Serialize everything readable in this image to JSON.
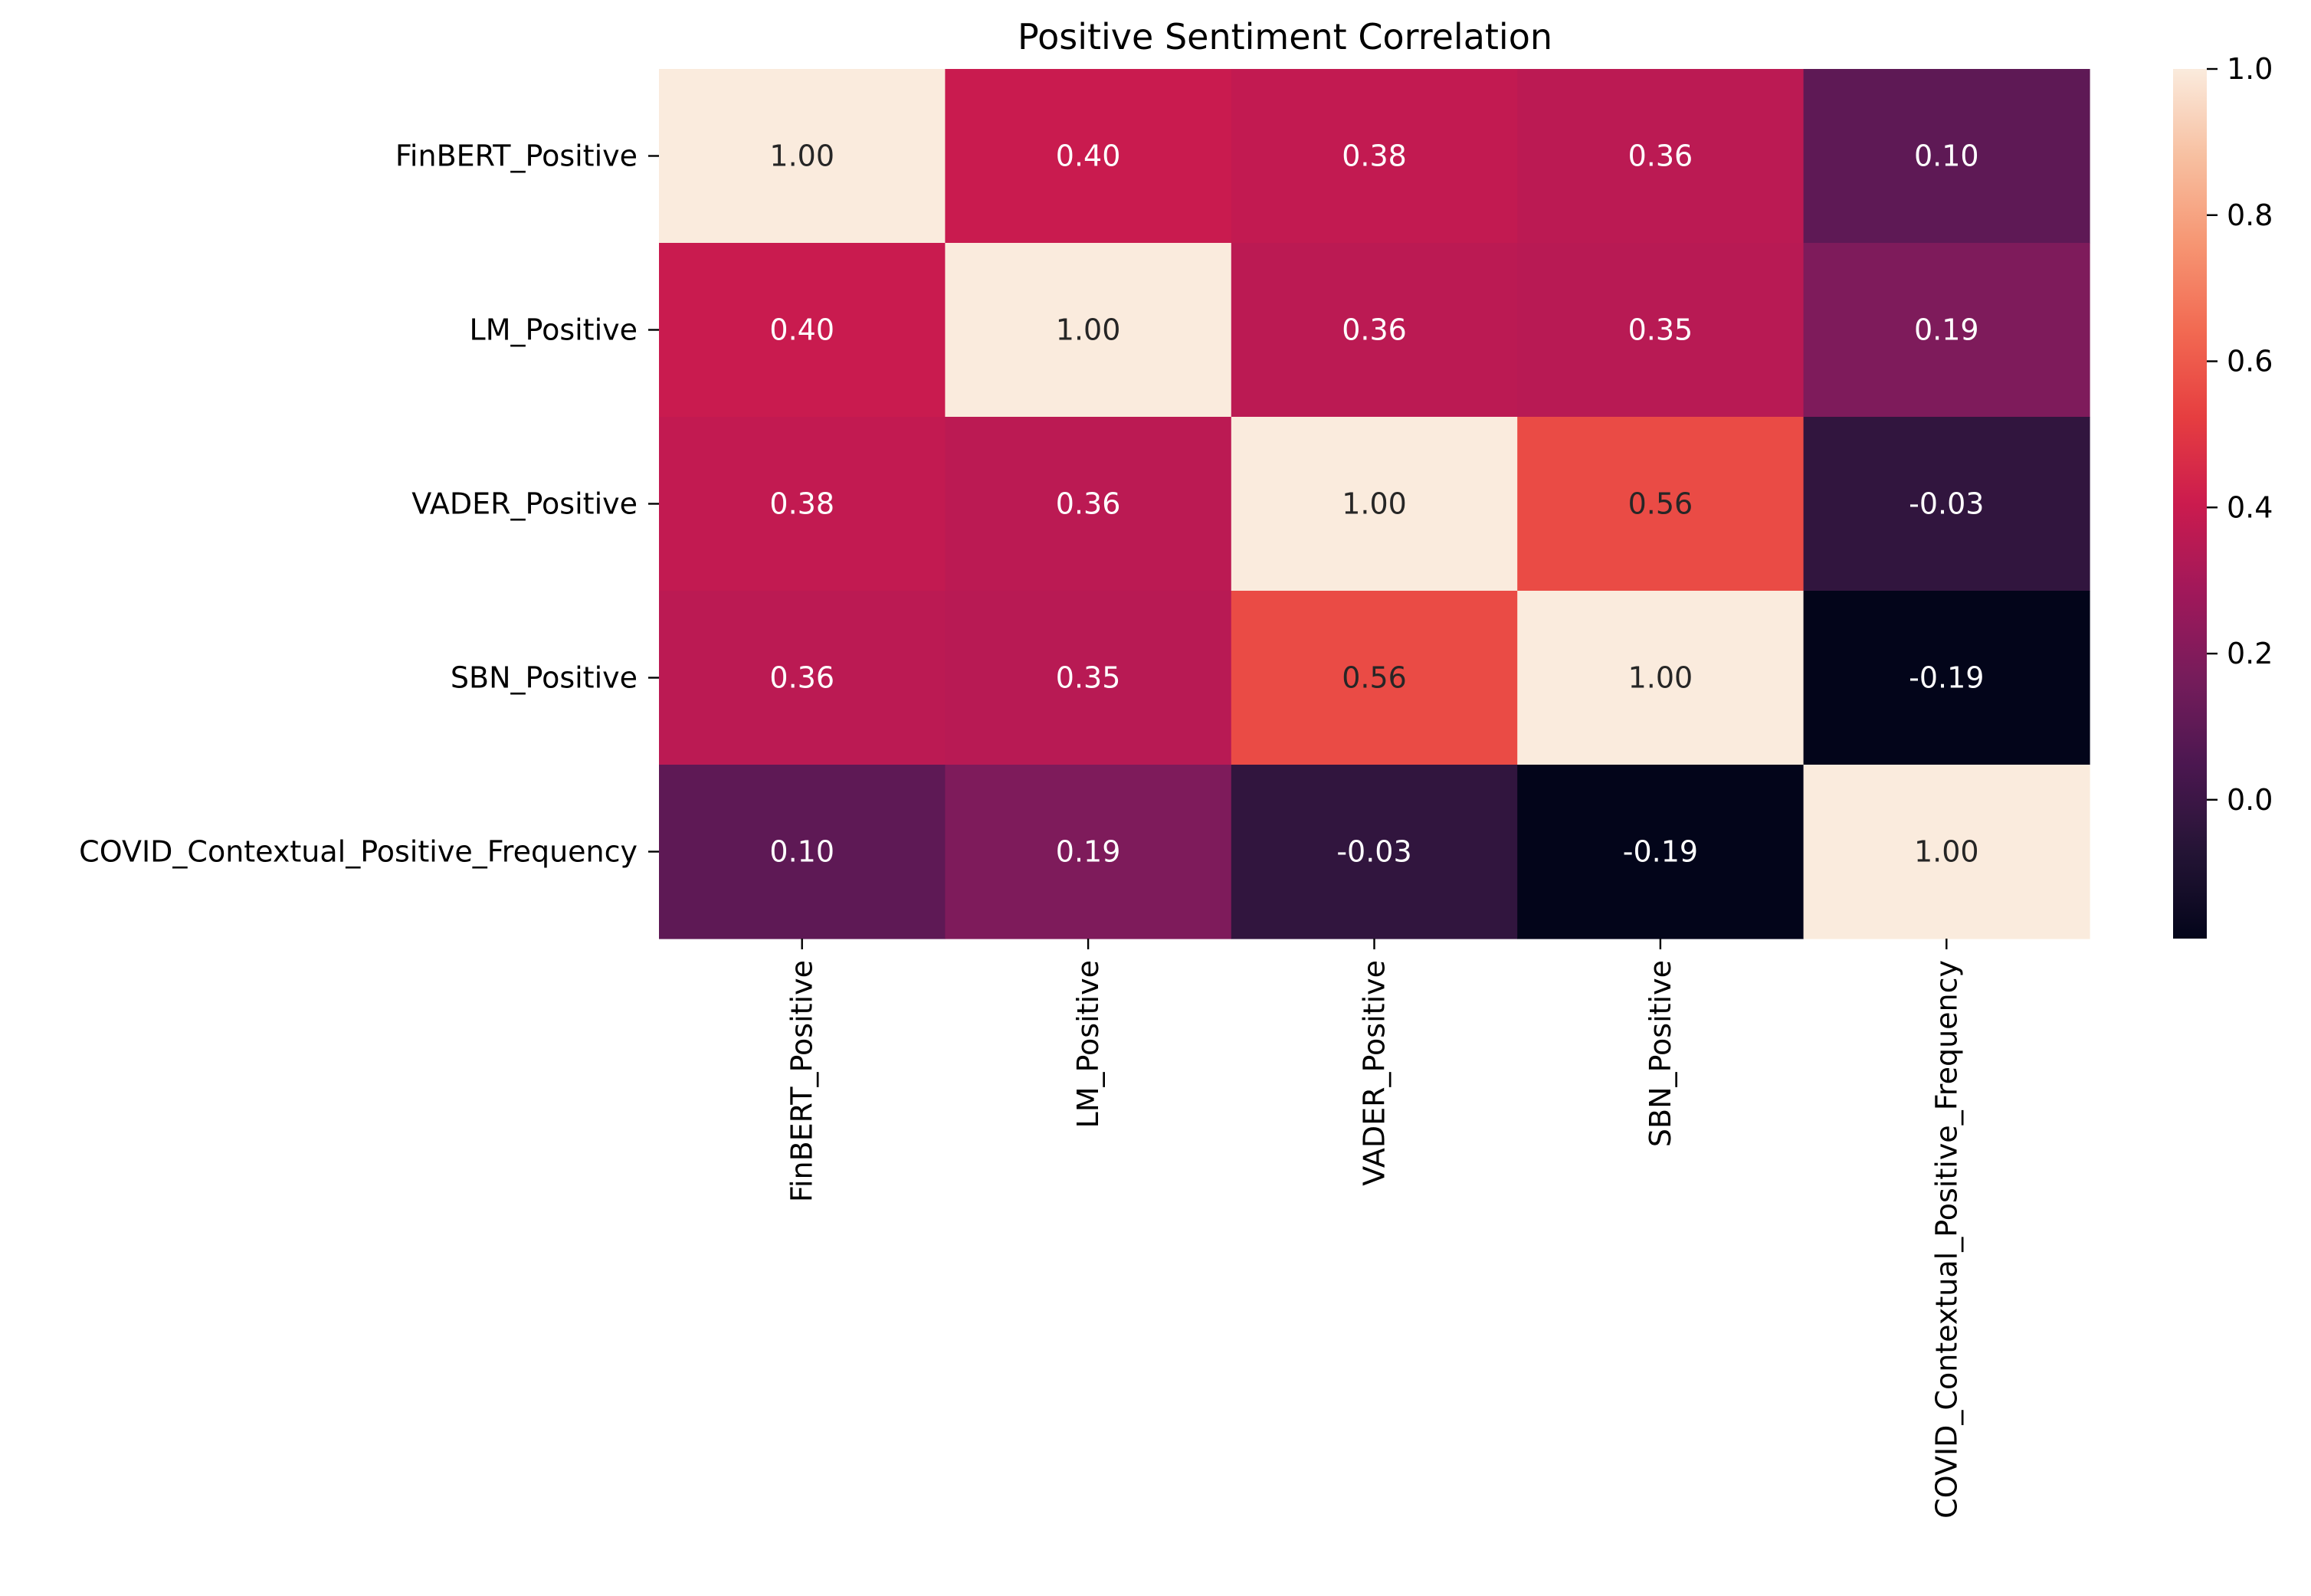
{
  "chart_data": {
    "type": "heatmap",
    "title": "Positive Sentiment Correlation",
    "xlabel": "",
    "ylabel": "",
    "x_categories": [
      "FinBERT_Positive",
      "LM_Positive",
      "VADER_Positive",
      "SBN_Positive",
      "COVID_Contextual_Positive_Frequency"
    ],
    "y_categories": [
      "FinBERT_Positive",
      "LM_Positive",
      "VADER_Positive",
      "SBN_Positive",
      "COVID_Contextual_Positive_Frequency"
    ],
    "values": [
      [
        1.0,
        0.4,
        0.38,
        0.36,
        0.1
      ],
      [
        0.4,
        1.0,
        0.36,
        0.35,
        0.19
      ],
      [
        0.38,
        0.36,
        1.0,
        0.56,
        -0.03
      ],
      [
        0.36,
        0.35,
        0.56,
        1.0,
        -0.19
      ],
      [
        0.1,
        0.19,
        -0.03,
        -0.19,
        1.0
      ]
    ],
    "cell_labels": [
      [
        "1.00",
        "0.40",
        "0.38",
        "0.36",
        "0.10"
      ],
      [
        "0.40",
        "1.00",
        "0.36",
        "0.35",
        "0.19"
      ],
      [
        "0.38",
        "0.36",
        "1.00",
        "0.56",
        "-0.03"
      ],
      [
        "0.36",
        "0.35",
        "0.56",
        "1.00",
        "-0.19"
      ],
      [
        "0.10",
        "0.19",
        "-0.03",
        "-0.19",
        "1.00"
      ]
    ],
    "colormap": "rocket",
    "color_range": [
      -0.19,
      1.0
    ],
    "colorbar": {
      "ticks": [
        0.0,
        0.2,
        0.4,
        0.6,
        0.8,
        1.0
      ],
      "tick_labels": [
        "0.0",
        "0.2",
        "0.4",
        "0.6",
        "0.8",
        "1.0"
      ],
      "placement": "right"
    },
    "grid": false
  }
}
